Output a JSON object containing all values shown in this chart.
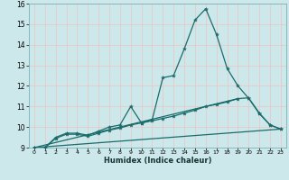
{
  "xlabel": "Humidex (Indice chaleur)",
  "xlim": [
    -0.5,
    23.5
  ],
  "ylim": [
    9,
    16
  ],
  "yticks": [
    9,
    10,
    11,
    12,
    13,
    14,
    15,
    16
  ],
  "xticks": [
    0,
    1,
    2,
    3,
    4,
    5,
    6,
    7,
    8,
    9,
    10,
    11,
    12,
    13,
    14,
    15,
    16,
    17,
    18,
    19,
    20,
    21,
    22,
    23
  ],
  "background_color": "#cce8ea",
  "grid_color": "#e8c8c8",
  "line_color": "#1a6b6b",
  "lines": [
    {
      "x": [
        0,
        1,
        2,
        3,
        4,
        5,
        6,
        7,
        8,
        9,
        10,
        11,
        12,
        13,
        14,
        15,
        16,
        17,
        18,
        19,
        20,
        21,
        22,
        23
      ],
      "y": [
        9.0,
        9.0,
        9.5,
        9.7,
        9.7,
        9.6,
        9.8,
        10.0,
        10.1,
        11.0,
        10.2,
        10.35,
        12.4,
        12.5,
        13.8,
        15.2,
        15.75,
        14.5,
        12.85,
        12.0,
        11.4,
        10.65,
        10.1,
        9.9
      ]
    },
    {
      "x": [
        0,
        1,
        2,
        3,
        4,
        5,
        6,
        7,
        8,
        9,
        10,
        11,
        12,
        13,
        14,
        15,
        16,
        17,
        18,
        19,
        20,
        21,
        22,
        23
      ],
      "y": [
        9.0,
        9.0,
        9.45,
        9.65,
        9.65,
        9.55,
        9.7,
        9.85,
        9.95,
        10.1,
        10.2,
        10.3,
        10.42,
        10.53,
        10.68,
        10.82,
        11.0,
        11.1,
        11.22,
        11.38,
        11.42,
        10.68,
        10.1,
        9.9
      ]
    },
    {
      "x": [
        0,
        23
      ],
      "y": [
        9.0,
        9.9
      ]
    },
    {
      "x": [
        0,
        19
      ],
      "y": [
        9.0,
        11.38
      ]
    }
  ]
}
